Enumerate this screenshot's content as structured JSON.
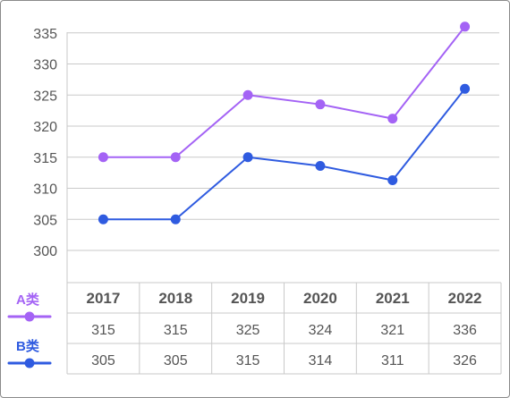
{
  "chart_data": {
    "type": "line",
    "title": "",
    "xlabel": "",
    "ylabel": "",
    "categories": [
      "2017",
      "2018",
      "2019",
      "2020",
      "2021",
      "2022"
    ],
    "y_ticks": [
      "335",
      "330",
      "325",
      "320",
      "315",
      "310",
      "305",
      "300"
    ],
    "ylim": [
      295,
      337
    ],
    "grid": true,
    "series": [
      {
        "name": "A类",
        "color": "#a463f5",
        "values": [
          315,
          315,
          325,
          324,
          321,
          336
        ],
        "plot_values": [
          315,
          315,
          325,
          323.5,
          321.2,
          336
        ]
      },
      {
        "name": "B类",
        "color": "#2f5be0",
        "values": [
          305,
          305,
          315,
          314,
          311,
          326
        ],
        "plot_values": [
          305,
          305,
          315,
          313.6,
          311.3,
          326
        ]
      }
    ],
    "table": {
      "rows": [
        [
          "315",
          "315",
          "325",
          "324",
          "321",
          "336"
        ],
        [
          "305",
          "305",
          "315",
          "314",
          "311",
          "326"
        ]
      ]
    },
    "legend_placement": "left of data table"
  }
}
